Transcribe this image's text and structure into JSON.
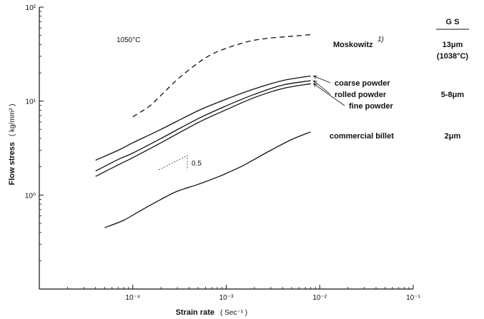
{
  "chart_data": {
    "type": "line",
    "title": "",
    "xlabel": "Strain rate",
    "xlabel_unit": "( Sec⁻¹ )",
    "ylabel": "Flow stress",
    "ylabel_unit": "( kg/mm² )",
    "xscale": "log",
    "yscale": "log",
    "xlim": [
      1e-05,
      0.1
    ],
    "ylim": [
      0.1,
      100
    ],
    "x_ticks": [
      {
        "value": 0.0001,
        "label": "10⁻⁴"
      },
      {
        "value": 0.001,
        "label": "10⁻³"
      },
      {
        "value": 0.01,
        "label": "10⁻²"
      },
      {
        "value": 0.1,
        "label": "10⁻¹"
      }
    ],
    "y_ticks": [
      {
        "value": 1,
        "label": "10⁰"
      },
      {
        "value": 10,
        "label": "10¹"
      },
      {
        "value": 100,
        "label": "10²"
      }
    ],
    "temperature_note": "1050°C",
    "slope_note": "0.5",
    "gs_header": "G S",
    "series": [
      {
        "name": "Moskowitz",
        "name_superscript": "1)",
        "style": "dashed",
        "gs": "13μm",
        "gs_note": "(1038°C)",
        "x": [
          0.0001,
          0.00015,
          0.0002,
          0.0003,
          0.0005,
          0.0007,
          0.001,
          0.0015,
          0.002,
          0.003,
          0.005,
          0.008
        ],
        "y": [
          6.8,
          8.8,
          11.5,
          17,
          25.5,
          31.5,
          36.5,
          41.5,
          44.5,
          47,
          49,
          51
        ]
      },
      {
        "name": "coarse powder",
        "style": "solid",
        "gs": "",
        "x": [
          4e-05,
          7e-05,
          0.0001,
          0.0002,
          0.0005,
          0.001,
          0.002,
          0.004,
          0.008
        ],
        "y": [
          2.35,
          3.0,
          3.6,
          5.0,
          7.9,
          10.5,
          13.5,
          16.5,
          18.5
        ]
      },
      {
        "name": "rolled powder",
        "style": "solid",
        "gs": "5-8μm",
        "x": [
          4e-05,
          7e-05,
          0.0001,
          0.0002,
          0.0005,
          0.001,
          0.002,
          0.004,
          0.008
        ],
        "y": [
          1.8,
          2.4,
          2.8,
          4.0,
          6.5,
          8.9,
          11.8,
          14.8,
          16.5
        ]
      },
      {
        "name": "fine powder",
        "style": "solid",
        "gs": "",
        "x": [
          4e-05,
          7e-05,
          0.0001,
          0.0002,
          0.0005,
          0.001,
          0.002,
          0.004,
          0.008
        ],
        "y": [
          1.58,
          2.1,
          2.5,
          3.6,
          5.9,
          8.1,
          10.9,
          13.6,
          15.3
        ]
      },
      {
        "name": "commercial billet",
        "style": "solid",
        "gs": "2μm",
        "x": [
          5e-05,
          8e-05,
          0.00012,
          0.0002,
          0.0003,
          0.0005,
          0.0008,
          0.001,
          0.0015,
          0.002,
          0.003,
          0.005,
          0.008
        ],
        "y": [
          0.45,
          0.54,
          0.68,
          0.9,
          1.1,
          1.3,
          1.55,
          1.7,
          2.05,
          2.4,
          3.0,
          3.9,
          4.7
        ]
      }
    ]
  }
}
